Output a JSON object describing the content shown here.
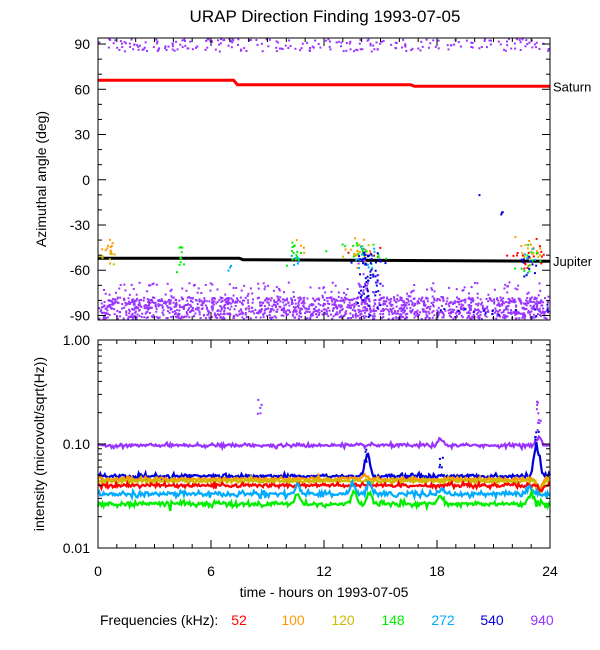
{
  "title": "URAP Direction Finding  1993-07-05",
  "chart_data": [
    {
      "type": "scatter",
      "panel": "top",
      "ylabel": "Azimuthal angle (deg)",
      "ylim": [
        -93,
        94
      ],
      "yticks": [
        90,
        60,
        30,
        0,
        -30,
        -60,
        -90
      ],
      "xlim": [
        0,
        24
      ],
      "grid": false,
      "annotations": [
        {
          "text": "Saturn",
          "y": 62
        },
        {
          "text": "Jupiter",
          "y": -54
        }
      ],
      "reference_lines": [
        {
          "name": "Saturn",
          "color": "#ff0000",
          "points": [
            [
              0,
              66
            ],
            [
              7.2,
              66
            ],
            [
              7.4,
              63
            ],
            [
              16.6,
              63
            ],
            [
              16.8,
              62
            ],
            [
              24,
              62
            ]
          ]
        },
        {
          "name": "Jupiter",
          "color": "#000000",
          "points": [
            [
              0,
              -52
            ],
            [
              7.5,
              -52
            ],
            [
              7.7,
              -53
            ],
            [
              24,
              -54
            ]
          ]
        }
      ],
      "series": [
        {
          "name": "52",
          "color": "#ff0000",
          "clusters": [
            {
              "x": 22.5,
              "y": -52,
              "xs": 0.4,
              "ys": 4,
              "n": 12
            },
            {
              "x": 23.5,
              "y": -48,
              "xs": 0.3,
              "ys": 4,
              "n": 10
            },
            {
              "x": 14.2,
              "y": -50,
              "xs": 0.3,
              "ys": 4,
              "n": 6
            }
          ]
        },
        {
          "name": "100",
          "color": "#ff9900",
          "clusters": [
            {
              "x": 0.6,
              "y": -46,
              "xs": 0.3,
              "ys": 4,
              "n": 14
            },
            {
              "x": 14.0,
              "y": -46,
              "xs": 0.5,
              "ys": 4,
              "n": 12
            },
            {
              "x": 22.8,
              "y": -47,
              "xs": 0.4,
              "ys": 4,
              "n": 12
            },
            {
              "x": 10.6,
              "y": -45,
              "xs": 0.2,
              "ys": 3,
              "n": 5
            }
          ]
        },
        {
          "name": "120",
          "color": "#ccbb00",
          "clusters": [
            {
              "x": 0.5,
              "y": -50,
              "xs": 0.3,
              "ys": 4,
              "n": 8
            },
            {
              "x": 13.9,
              "y": -49,
              "xs": 0.4,
              "ys": 4,
              "n": 8
            },
            {
              "x": 23.3,
              "y": -51,
              "xs": 0.4,
              "ys": 4,
              "n": 8
            }
          ]
        },
        {
          "name": "148",
          "color": "#00ee00",
          "clusters": [
            {
              "x": 4.4,
              "y": -50,
              "xs": 0.15,
              "ys": 4,
              "n": 10
            },
            {
              "x": 10.6,
              "y": -50,
              "xs": 0.2,
              "ys": 4,
              "n": 14
            },
            {
              "x": 14.0,
              "y": -48,
              "xs": 0.5,
              "ys": 4,
              "n": 20
            },
            {
              "x": 23.0,
              "y": -52,
              "xs": 0.4,
              "ys": 4,
              "n": 12
            }
          ]
        },
        {
          "name": "272",
          "color": "#00aaff",
          "clusters": [
            {
              "x": 6.9,
              "y": -58,
              "xs": 0.1,
              "ys": 2,
              "n": 3
            },
            {
              "x": 14.2,
              "y": -52,
              "xs": 0.4,
              "ys": 4,
              "n": 16
            },
            {
              "x": 23.2,
              "y": -53,
              "xs": 0.3,
              "ys": 3,
              "n": 6
            },
            {
              "x": 10.5,
              "y": -53,
              "xs": 0.2,
              "ys": 3,
              "n": 6
            }
          ]
        },
        {
          "name": "540",
          "color": "#0000dd",
          "clusters": [
            {
              "x": 14.3,
              "y": -54,
              "xs": 0.35,
              "ys": 4,
              "n": 28
            },
            {
              "x": 14.4,
              "y": -72,
              "xs": 0.3,
              "ys": 8,
              "n": 40
            },
            {
              "x": 22.9,
              "y": -58,
              "xs": 0.4,
              "ys": 5,
              "n": 12
            },
            {
              "x": 20.3,
              "y": -10,
              "xs": 0.05,
              "ys": 1,
              "n": 1
            },
            {
              "x": 21.4,
              "y": -22,
              "xs": 0.05,
              "ys": 3,
              "n": 3
            },
            {
              "x": 21.0,
              "y": -88,
              "xs": 2.5,
              "ys": 2,
              "n": 20
            }
          ]
        },
        {
          "name": "940",
          "color": "#9933ff",
          "bands": [
            {
              "ylo": -93,
              "yhi": -78,
              "n": 1500
            },
            {
              "ylo": 85,
              "yhi": 94,
              "n": 260
            },
            {
              "ylo": -80,
              "yhi": -68,
              "n": 150
            }
          ],
          "clusters": [
            {
              "x": 14.3,
              "y": -70,
              "xs": 0.4,
              "ys": 6,
              "n": 20
            }
          ]
        }
      ]
    },
    {
      "type": "line",
      "panel": "bottom",
      "ylabel": "intensity (microvolt/sqrt(Hz))",
      "yscale": "log",
      "ylim": [
        0.01,
        1.0
      ],
      "yticks": [
        "1.00",
        "0.10",
        "0.01"
      ],
      "xlabel": "time - hours on 1993-07-05",
      "xticks": [
        "0",
        "6",
        "12",
        "18",
        "24"
      ],
      "xlim": [
        0,
        24
      ],
      "grid": false,
      "series": [
        {
          "name": "940",
          "color": "#9933ff",
          "base": 0.097,
          "noise": 0.002,
          "bumps": [
            {
              "x": 18.2,
              "amp": 1.15
            },
            {
              "x": 23.4,
              "amp": 1.2
            }
          ],
          "spikes": [
            {
              "x": 8.6,
              "y": 0.26
            },
            {
              "x": 23.3,
              "y": 0.25
            },
            {
              "x": 23.4,
              "y": 0.18
            }
          ]
        },
        {
          "name": "540",
          "color": "#0000dd",
          "base": 0.049,
          "noise": 0.0012,
          "bumps": [
            {
              "x": 14.3,
              "amp": 1.55
            },
            {
              "x": 23.3,
              "amp": 2.0
            }
          ],
          "spikes": [
            {
              "x": 14.2,
              "y": 0.085
            },
            {
              "x": 18.2,
              "y": 0.075
            },
            {
              "x": 23.3,
              "y": 0.13
            }
          ]
        },
        {
          "name": "100",
          "color": "#ff9900",
          "base": 0.046,
          "noise": 0.001,
          "bumps": [
            {
              "x": 14.2,
              "amp": 1.1
            },
            {
              "x": 23.4,
              "amp": 0.75
            }
          ],
          "spikes": []
        },
        {
          "name": "120",
          "color": "#ccbb00",
          "base": 0.044,
          "noise": 0.001,
          "bumps": [
            {
              "x": 23.5,
              "amp": 0.8
            }
          ],
          "spikes": []
        },
        {
          "name": "52",
          "color": "#ff0000",
          "base": 0.04,
          "noise": 0.001,
          "bumps": [
            {
              "x": 23.5,
              "amp": 0.9
            }
          ],
          "spikes": []
        },
        {
          "name": "272",
          "color": "#00aaff",
          "base": 0.033,
          "noise": 0.001,
          "bumps": [
            {
              "x": 10.6,
              "amp": 1.2
            },
            {
              "x": 13.5,
              "amp": 1.25
            },
            {
              "x": 14.4,
              "amp": 1.3
            },
            {
              "x": 18.2,
              "amp": 1.1
            },
            {
              "x": 22.9,
              "amp": 1.15
            }
          ],
          "spikes": []
        },
        {
          "name": "148",
          "color": "#00ee00",
          "base": 0.0265,
          "noise": 0.0008,
          "bumps": [
            {
              "x": 4.5,
              "amp": 1.05
            },
            {
              "x": 10.6,
              "amp": 1.25
            },
            {
              "x": 13.6,
              "amp": 1.35
            },
            {
              "x": 14.4,
              "amp": 1.3
            },
            {
              "x": 18.2,
              "amp": 1.2
            },
            {
              "x": 23.0,
              "amp": 1.25
            }
          ],
          "spikes": []
        }
      ]
    }
  ],
  "legend": {
    "label": "Frequencies (kHz):",
    "items": [
      {
        "text": "52",
        "color": "#ff0000"
      },
      {
        "text": "100",
        "color": "#ff9900"
      },
      {
        "text": "120",
        "color": "#ccbb00"
      },
      {
        "text": "148",
        "color": "#00ee00"
      },
      {
        "text": "272",
        "color": "#00aaff"
      },
      {
        "text": "540",
        "color": "#0000dd"
      },
      {
        "text": "940",
        "color": "#9933ff"
      }
    ]
  }
}
